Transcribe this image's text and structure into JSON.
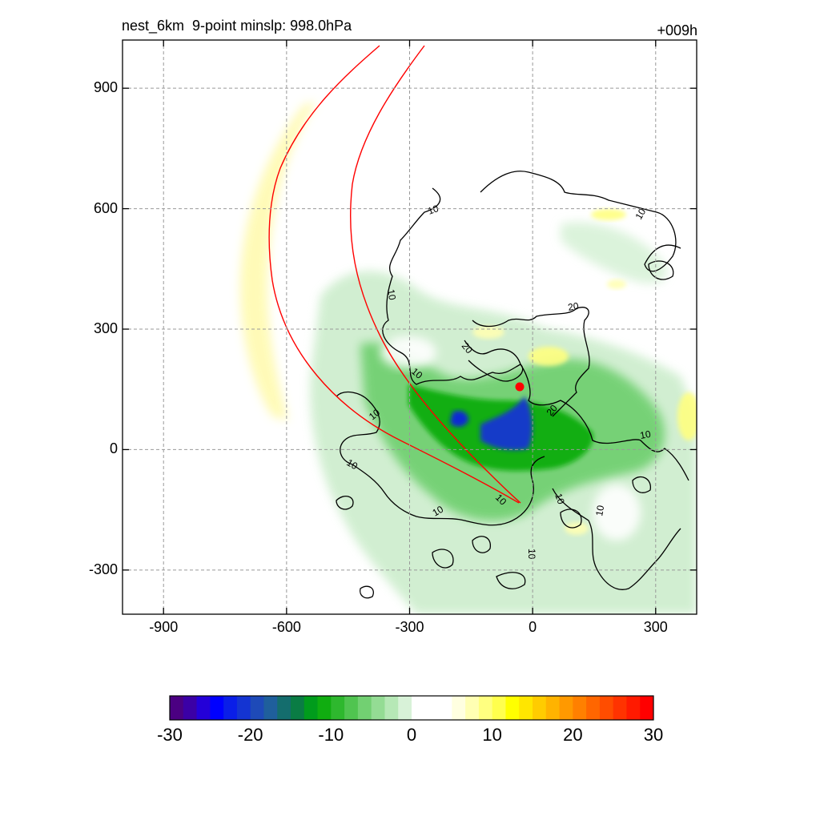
{
  "title_left": "nest_6km  9-point minslp: 998.0hPa",
  "title_right": "+009h",
  "chart_data": {
    "type": "heatmap",
    "xlim": [
      -1000,
      400
    ],
    "ylim": [
      -410,
      1020
    ],
    "x_ticks": [
      "-900",
      "-600",
      "-300",
      "0",
      "300"
    ],
    "x_tick_values": [
      -900,
      -600,
      -300,
      0,
      300
    ],
    "y_ticks": [
      "900",
      "600",
      "300",
      "0",
      "-300"
    ],
    "y_tick_values": [
      900,
      600,
      300,
      0,
      -300
    ],
    "grid": true,
    "grid_style": "dashed",
    "colorbar": {
      "range": [
        -30,
        30
      ],
      "ticks": [
        "-30",
        "-20",
        "-10",
        "0",
        "10",
        "20",
        "30"
      ],
      "tick_values": [
        -30,
        -20,
        -10,
        0,
        10,
        20,
        30
      ],
      "colors": [
        "#4b0082",
        "#3b00a6",
        "#2400d8",
        "#0000ff",
        "#0a1ee8",
        "#1434d2",
        "#1e4ab8",
        "#1f5f9c",
        "#146d6d",
        "#0a7c44",
        "#009c1c",
        "#10ad10",
        "#2eb82e",
        "#50c450",
        "#72d072",
        "#94dc94",
        "#b6e8b6",
        "#d8f2d8",
        "#ffffff",
        "#ffffff",
        "#ffffff",
        "#ffffe0",
        "#ffffb3",
        "#ffff80",
        "#ffff4d",
        "#ffff00",
        "#ffe600",
        "#ffcc00",
        "#ffb300",
        "#ff9900",
        "#ff8000",
        "#ff6600",
        "#ff4d00",
        "#ff3300",
        "#ff1a00",
        "#ff0000"
      ]
    },
    "contour_labels": [
      "10",
      "10",
      "10",
      "10",
      "10",
      "10",
      "10",
      "10",
      "10",
      "10",
      "10",
      "10",
      "20",
      "20",
      "20"
    ],
    "center_marker_color": "#ff0000",
    "track_color": "#ff0000"
  }
}
